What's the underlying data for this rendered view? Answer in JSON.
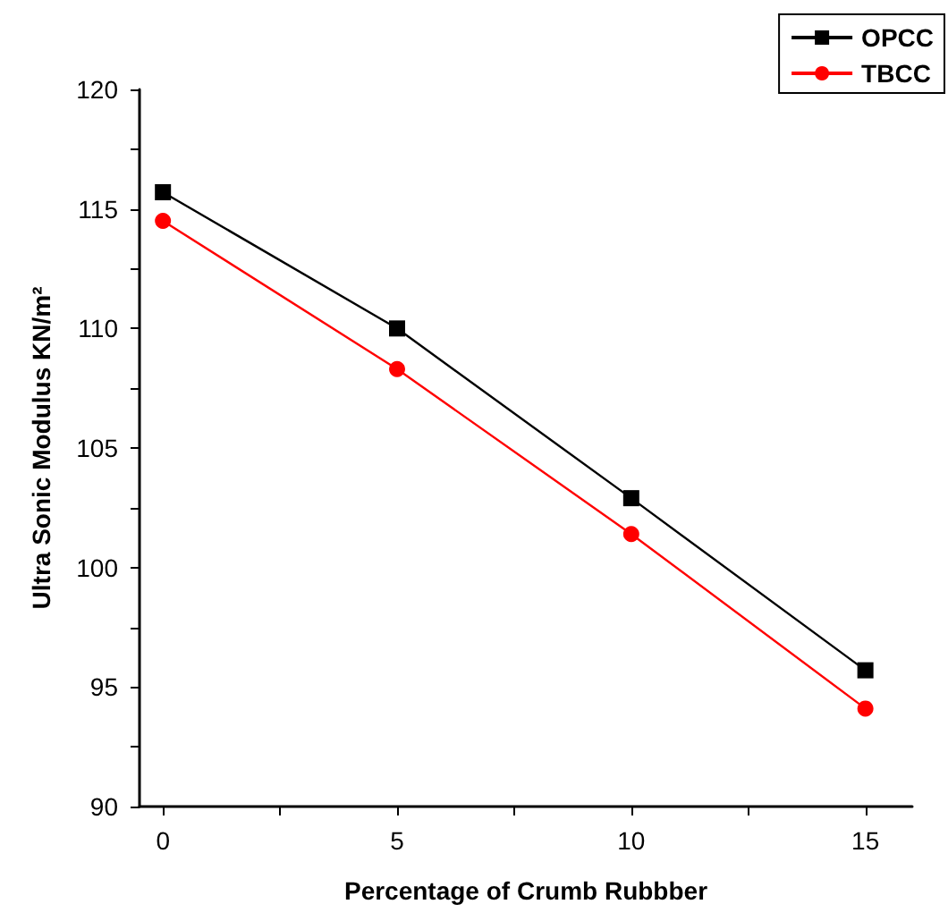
{
  "chart_data": {
    "type": "line",
    "xlabel": "Percentage of Crumb Rubbber",
    "ylabel": "Ultra Sonic Modulus KN/m²",
    "x": [
      0,
      5,
      10,
      15
    ],
    "series": [
      {
        "name": "OPCC",
        "color": "#000000",
        "marker": "square",
        "values": [
          115.7,
          110.0,
          102.9,
          95.7
        ]
      },
      {
        "name": "TBCC",
        "color": "#ff0000",
        "marker": "circle",
        "values": [
          114.5,
          108.3,
          101.4,
          94.1
        ]
      }
    ],
    "xlim": [
      -0.5,
      16
    ],
    "xticks": [
      0,
      {
        "value": 2.5,
        "label": null
      },
      5,
      {
        "value": 7.5,
        "label": null
      },
      10,
      {
        "value": 12.5,
        "label": null
      },
      15
    ],
    "ylim": [
      90,
      120
    ],
    "yticks": [
      90,
      {
        "value": 92.5,
        "label": null
      },
      95,
      {
        "value": 97.5,
        "label": null
      },
      100,
      {
        "value": 102.5,
        "label": null
      },
      105,
      {
        "value": 107.5,
        "label": null
      },
      110,
      {
        "value": 112.5,
        "label": null
      },
      115,
      {
        "value": 117.5,
        "label": null
      },
      120
    ],
    "grid": false,
    "legend": "top right",
    "line_style": "solid"
  }
}
